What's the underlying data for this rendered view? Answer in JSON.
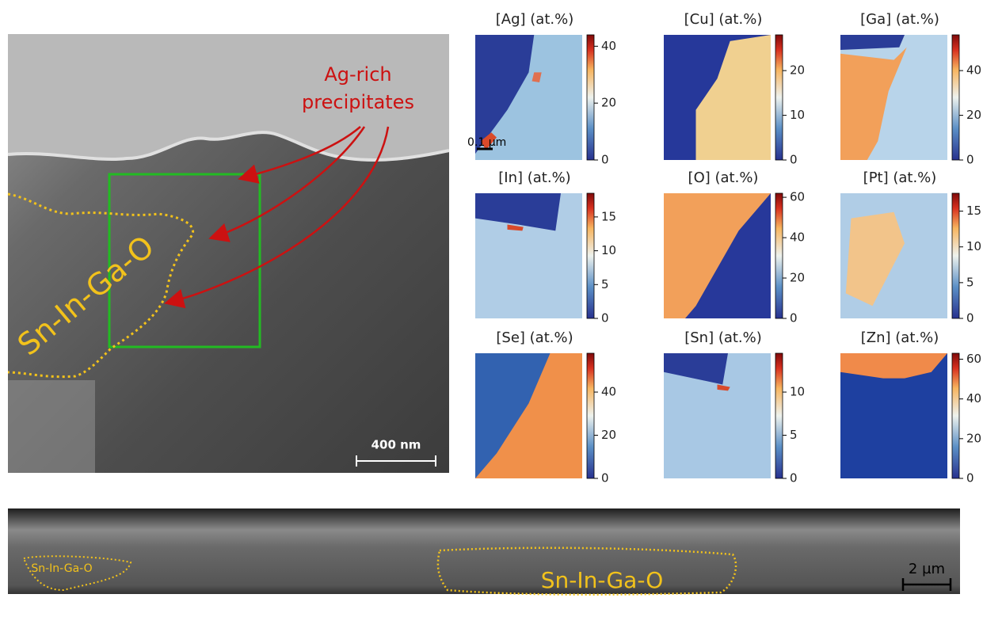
{
  "tem_image": {
    "annotation_lines": [
      "Ag-rich",
      "precipitates"
    ],
    "region_label": "Sn-In-Ga-O",
    "scale_bar": "400 nm"
  },
  "maps": [
    {
      "title": "[Ag] (at.%)",
      "ylim": [
        0,
        44
      ],
      "yticks": [
        0,
        20,
        40
      ],
      "scale_bar": "0.1 µm"
    },
    {
      "title": "[Cu] (at.%)",
      "ylim": [
        0,
        28
      ],
      "yticks": [
        0,
        10,
        20
      ]
    },
    {
      "title": "[Ga] (at.%)",
      "ylim": [
        0,
        56
      ],
      "yticks": [
        0,
        20,
        40
      ]
    },
    {
      "title": "[In] (at.%)",
      "ylim": [
        0,
        18.5
      ],
      "yticks": [
        0,
        5,
        10,
        15
      ]
    },
    {
      "title": "[O] (at.%)",
      "ylim": [
        0,
        62
      ],
      "yticks": [
        0,
        20,
        40,
        60
      ]
    },
    {
      "title": "[Pt] (at.%)",
      "ylim": [
        0,
        17.5
      ],
      "yticks": [
        0,
        5,
        10,
        15
      ]
    },
    {
      "title": "[Se] (at.%)",
      "ylim": [
        0,
        58
      ],
      "yticks": [
        0,
        20,
        40
      ]
    },
    {
      "title": "[Sn] (at.%)",
      "ylim": [
        0,
        14.5
      ],
      "yticks": [
        0,
        5,
        10
      ]
    },
    {
      "title": "[Zn] (at.%)",
      "ylim": [
        0,
        63
      ],
      "yticks": [
        0,
        20,
        40,
        60
      ]
    }
  ],
  "sem_image": {
    "region_labels": [
      "Sn-In-Ga-O",
      "Sn-In-Ga-O"
    ],
    "scale_bar": "2 µm"
  }
}
